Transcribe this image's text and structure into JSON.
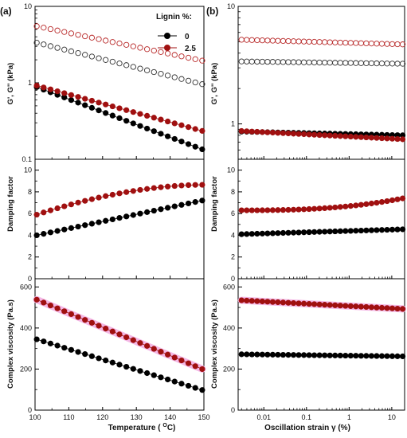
{
  "colors": {
    "series_0": "#000000",
    "series_25": "#a01010",
    "open_0": "#333333",
    "open_25": "#b82828",
    "halo": "#f4b8e6"
  },
  "legend": {
    "title": "Lignin %:",
    "entries": [
      "0",
      "2.5"
    ]
  },
  "panel_a": {
    "label": "(a)",
    "xlabel": "Temperature ( °C)",
    "xlabel_main": "Temperature ( ",
    "xlabel_sup": "O",
    "xlabel_end": "C)",
    "xlim": [
      100,
      150
    ],
    "xticks": [
      "100",
      "110",
      "120",
      "130",
      "140",
      "150"
    ],
    "ylabels": [
      "G', G'' (kPa)",
      "Damping factor",
      "Complex viscosity (Pa.s)"
    ]
  },
  "panel_b": {
    "label": "(b)",
    "xlabel": "Oscillation strain γ (%)",
    "xlim": [
      0.0025,
      20
    ],
    "xscale": "log",
    "xticks": [
      "0.01",
      "0.1",
      "1",
      "10"
    ],
    "ylabels": [
      "G', G'' (kPa)",
      "Damping factor",
      "Complex viscosity (Pa.s)"
    ]
  },
  "modulus_ticks": [
    "0.1",
    "1",
    "10"
  ],
  "damping_ticks": [
    "0",
    "2",
    "4",
    "6",
    "8",
    "10"
  ],
  "viscosity_ticks": [
    "0",
    "200",
    "400",
    "600"
  ],
  "chart_data": [
    {
      "type": "scatter",
      "panel": "a",
      "row": "modulus",
      "xlabel": "Temperature ( °C)",
      "ylabel": "G', G'' (kPa)",
      "yscale": "log",
      "ylim": [
        0.1,
        10
      ],
      "xlim": [
        100,
        150
      ],
      "series": [
        {
          "name": "0",
          "fill": "open",
          "x_start": 100.5,
          "x_end": 149.5,
          "n": 25,
          "y_start": 3.35,
          "y_end": 0.96
        },
        {
          "name": "2.5",
          "fill": "open",
          "x_start": 100.5,
          "x_end": 149.5,
          "n": 25,
          "y_start": 5.5,
          "y_end": 1.95
        },
        {
          "name": "0",
          "fill": "solid",
          "x_start": 100.5,
          "x_end": 149.5,
          "n": 25,
          "y_start": 0.88,
          "y_end": 0.135
        },
        {
          "name": "2.5",
          "fill": "solid",
          "x_start": 100.5,
          "x_end": 149.5,
          "n": 25,
          "y_start": 0.92,
          "y_end": 0.235
        }
      ]
    },
    {
      "type": "scatter",
      "panel": "a",
      "row": "damping",
      "xlabel": "Temperature ( °C)",
      "ylabel": "Damping factor",
      "ylim": [
        0,
        11
      ],
      "xlim": [
        100,
        150
      ],
      "series": [
        {
          "name": "0",
          "fill": "solid",
          "x_start": 100.5,
          "x_end": 149.5,
          "n": 25,
          "y_start": 4.0,
          "y_end": 7.2,
          "shape": "linear"
        },
        {
          "name": "2.5",
          "fill": "solid",
          "x_start": 100.5,
          "x_end": 149.5,
          "n": 25,
          "y_start": 5.9,
          "y_end": 8.65,
          "shape": "saturating"
        }
      ]
    },
    {
      "type": "scatter",
      "panel": "a",
      "row": "viscosity",
      "xlabel": "Temperature ( °C)",
      "ylabel": "Complex viscosity (Pa.s)",
      "ylim": [
        0,
        640
      ],
      "xlim": [
        100,
        150
      ],
      "series": [
        {
          "name": "0",
          "fill": "solid",
          "x_start": 100.5,
          "x_end": 149.5,
          "n": 25,
          "y_start": 345,
          "y_end": 98
        },
        {
          "name": "2.5",
          "fill": "solid",
          "x_start": 100.5,
          "x_end": 149.5,
          "n": 25,
          "y_start": 538,
          "y_end": 200
        }
      ]
    },
    {
      "type": "scatter",
      "panel": "b",
      "row": "modulus",
      "xlabel": "Oscillation strain γ (%)",
      "ylabel": "G', G'' (kPa)",
      "xscale": "log",
      "yscale": "log",
      "ylim": [
        0.5,
        10
      ],
      "xlim": [
        0.0025,
        20
      ],
      "series": [
        {
          "name": "0",
          "fill": "open",
          "x_start": 0.003,
          "x_end": 18,
          "n": 32,
          "y_start": 3.4,
          "y_end": 3.25
        },
        {
          "name": "2.5",
          "fill": "open",
          "x_start": 0.003,
          "x_end": 18,
          "n": 32,
          "y_start": 5.2,
          "y_end": 4.75
        },
        {
          "name": "0",
          "fill": "solid",
          "x_start": 0.003,
          "x_end": 18,
          "n": 32,
          "y_start": 0.86,
          "y_end": 0.8
        },
        {
          "name": "2.5",
          "fill": "solid",
          "x_start": 0.003,
          "x_end": 18,
          "n": 32,
          "y_start": 0.87,
          "y_end": 0.74
        }
      ]
    },
    {
      "type": "scatter",
      "panel": "b",
      "row": "damping",
      "xlabel": "Oscillation strain γ (%)",
      "ylabel": "Damping factor",
      "xscale": "log",
      "ylim": [
        0,
        11
      ],
      "xlim": [
        0.0025,
        20
      ],
      "series": [
        {
          "name": "0",
          "fill": "solid",
          "x_start": 0.003,
          "x_end": 18,
          "n": 32,
          "y_start": 4.1,
          "y_end": 4.55
        },
        {
          "name": "2.5",
          "fill": "solid",
          "x_start": 0.003,
          "x_end": 18,
          "n": 32,
          "y_start": 6.3,
          "y_end": 7.4,
          "shape": "late_rise"
        }
      ]
    },
    {
      "type": "scatter",
      "panel": "b",
      "row": "viscosity",
      "xlabel": "Oscillation strain γ (%)",
      "ylabel": "Complex viscosity (Pa.s)",
      "xscale": "log",
      "ylim": [
        0,
        640
      ],
      "xlim": [
        0.0025,
        20
      ],
      "series": [
        {
          "name": "0",
          "fill": "solid",
          "x_start": 0.003,
          "x_end": 18,
          "n": 32,
          "y_start": 272,
          "y_end": 262
        },
        {
          "name": "2.5",
          "fill": "solid",
          "x_start": 0.003,
          "x_end": 18,
          "n": 32,
          "y_start": 535,
          "y_end": 493
        }
      ]
    }
  ]
}
